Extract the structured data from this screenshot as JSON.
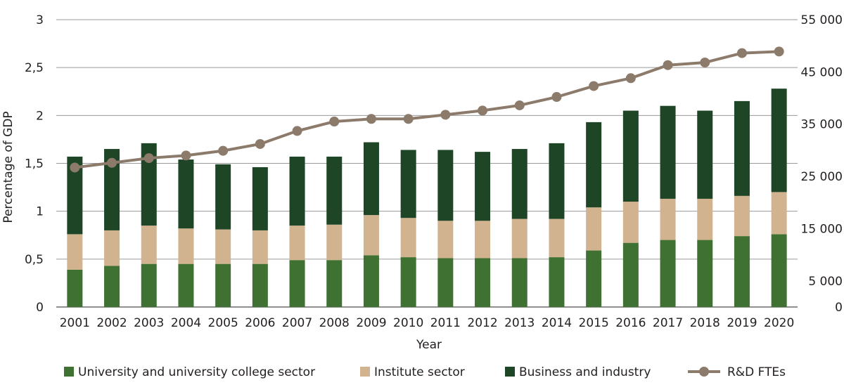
{
  "chart_data": {
    "type": "bar",
    "stacked": true,
    "categories": [
      "2001",
      "2002",
      "2003",
      "2004",
      "2005",
      "2006",
      "2007",
      "2008",
      "2009",
      "2010",
      "2011",
      "2012",
      "2013",
      "2014",
      "2015",
      "2016",
      "2017",
      "2018",
      "2019",
      "2020"
    ],
    "xlabel": "Year",
    "ylabel": "Percentage of GDP",
    "ylim": [
      0,
      3
    ],
    "y_ticks": [
      "0",
      "0,5",
      "1",
      "1,5",
      "2",
      "2,5",
      "3"
    ],
    "y2lim": [
      0,
      55000
    ],
    "y2_ticks": [
      "0",
      "5 000",
      "15 000",
      "25 000",
      "35 000",
      "45 000",
      "55 000"
    ],
    "grid": true,
    "legend_position": "bottom",
    "series": [
      {
        "name": "University and university college sector",
        "color": "#3f7232",
        "values": [
          0.39,
          0.43,
          0.45,
          0.45,
          0.45,
          0.45,
          0.49,
          0.49,
          0.54,
          0.52,
          0.51,
          0.51,
          0.51,
          0.52,
          0.59,
          0.67,
          0.7,
          0.7,
          0.74,
          0.76
        ]
      },
      {
        "name": "Institute sector",
        "color": "#d1b390",
        "values": [
          0.37,
          0.37,
          0.4,
          0.37,
          0.36,
          0.35,
          0.36,
          0.37,
          0.42,
          0.41,
          0.39,
          0.39,
          0.41,
          0.4,
          0.45,
          0.43,
          0.43,
          0.43,
          0.42,
          0.44
        ]
      },
      {
        "name": "Business and industry",
        "color": "#1f4527",
        "values": [
          0.81,
          0.85,
          0.86,
          0.72,
          0.68,
          0.66,
          0.72,
          0.71,
          0.76,
          0.71,
          0.74,
          0.72,
          0.73,
          0.79,
          0.89,
          0.95,
          0.97,
          0.92,
          0.99,
          1.08
        ]
      }
    ],
    "line_series": {
      "name": "R&D FTEs",
      "color": "#8c7a6b",
      "axis": "right",
      "values": [
        26700,
        27600,
        28500,
        29000,
        29900,
        31200,
        33700,
        35500,
        36000,
        36000,
        36800,
        37600,
        38600,
        40200,
        42300,
        43800,
        46300,
        46800,
        48600,
        48900
      ]
    }
  }
}
